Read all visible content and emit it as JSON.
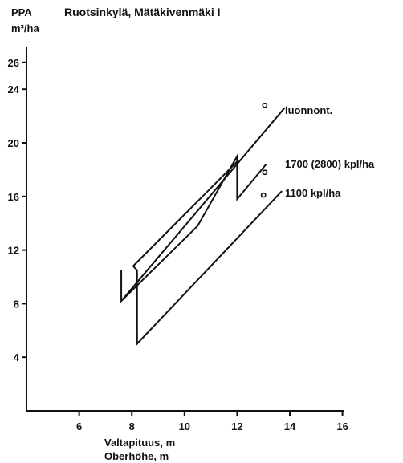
{
  "chart_data": {
    "type": "line",
    "title": "Ruotsinkylä, Mätäkivenmäki I",
    "ylabel": "PPA",
    "ylabel_unit": "m³/ha",
    "xlabel_line1": "Valtapituus, m",
    "xlabel_line2": "Oberhöhe, m",
    "xlim": [
      4,
      16
    ],
    "ylim": [
      0,
      26
    ],
    "x_ticks": [
      6,
      8,
      10,
      12,
      14,
      16
    ],
    "y_ticks": [
      4,
      8,
      12,
      16,
      20,
      24,
      26
    ],
    "grid": false,
    "series": [
      {
        "name": "luonnont.",
        "x": [
          7.6,
          13.8
        ],
        "y": [
          8.2,
          22.6
        ],
        "marker": {
          "x": 13.05,
          "y": 22.8
        }
      },
      {
        "name": "1700 (2800) kpl/ha",
        "x": [
          7.6,
          7.6,
          10.5,
          12.0,
          12.0,
          13.1
        ],
        "y": [
          10.5,
          8.2,
          13.8,
          19.0,
          15.8,
          18.4
        ],
        "marker": {
          "x": 13.05,
          "y": 17.8
        }
      },
      {
        "name": "1100 kpl/ha",
        "x": [
          8.05,
          8.2,
          8.2,
          13.7
        ],
        "y": [
          10.8,
          10.5,
          5.0,
          16.4
        ],
        "marker": {
          "x": 13.0,
          "y": 16.1
        }
      },
      {
        "name": "",
        "x": [
          8.05,
          12.0
        ],
        "y": [
          10.8,
          18.6
        ]
      }
    ]
  }
}
